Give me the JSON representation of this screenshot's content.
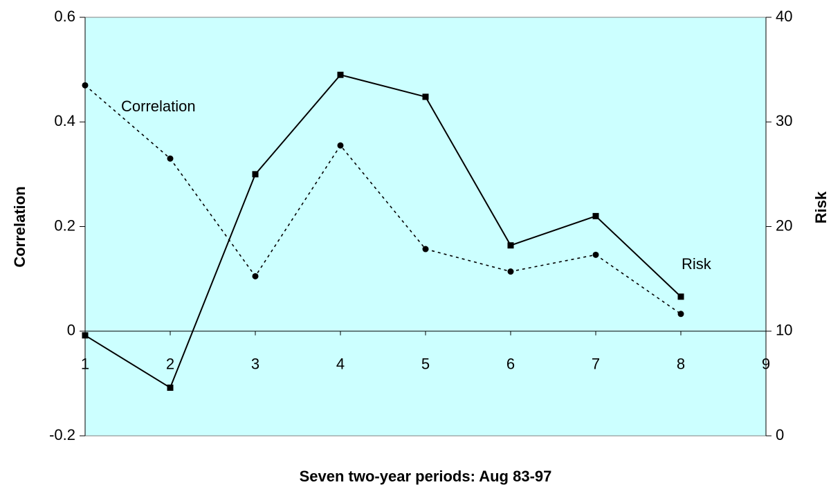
{
  "chart_data": {
    "type": "line",
    "x": [
      1,
      2,
      3,
      4,
      5,
      6,
      7,
      8
    ],
    "xlim": [
      1,
      9
    ],
    "xticks": [
      1,
      2,
      3,
      4,
      5,
      6,
      7,
      8,
      9
    ],
    "ylim": [
      -0.2,
      0.6
    ],
    "yticks": [
      -0.2,
      0,
      0.2,
      0.4,
      0.6
    ],
    "y2lim": [
      0,
      40
    ],
    "y2ticks": [
      0,
      10,
      20,
      30,
      40
    ],
    "xlabel": "Seven two-year periods: Aug 83-97",
    "ylabel": "Correlation",
    "y2label": "Risk",
    "background": "#ccffff",
    "series": [
      {
        "name": "Correlation",
        "color": "#000000",
        "style": "dotted",
        "marker": "circle",
        "values": [
          0.47,
          0.33,
          0.105,
          0.355,
          0.157,
          0.114,
          0.146,
          0.033
        ]
      },
      {
        "name": "Risk",
        "color": "#000000",
        "style": "solid",
        "marker": "square",
        "axis": "y2",
        "values": [
          9.6,
          4.6,
          25.0,
          34.5,
          32.4,
          18.2,
          21.0,
          13.3
        ]
      }
    ]
  }
}
